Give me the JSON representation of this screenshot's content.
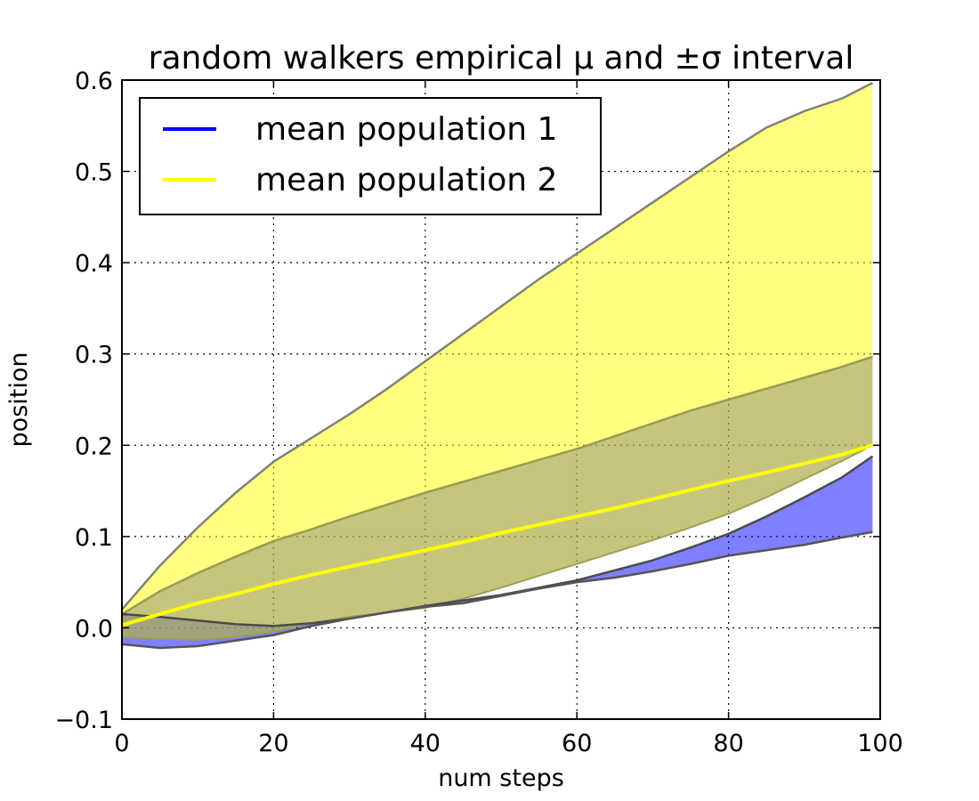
{
  "chart_data": {
    "type": "line",
    "title": "random walkers empirical μ and ±σ interval",
    "xlabel": "num steps",
    "ylabel": "position",
    "xlim": [
      0,
      100
    ],
    "ylim": [
      -0.1,
      0.6
    ],
    "xticks": [
      0,
      20,
      40,
      60,
      80,
      100
    ],
    "xtick_labels": [
      "0",
      "20",
      "40",
      "60",
      "80",
      "100"
    ],
    "yticks": [
      -0.1,
      0.0,
      0.1,
      0.2,
      0.3,
      0.4,
      0.5,
      0.6
    ],
    "ytick_labels": [
      "−0.1",
      "0.0",
      "0.1",
      "0.2",
      "0.3",
      "0.4",
      "0.5",
      "0.6"
    ],
    "grid": true,
    "legend_position": "top-left",
    "series": [
      {
        "name": "mean population 1",
        "color": "#0000ff",
        "fill_color": "#0000ff",
        "x": [
          0,
          5,
          10,
          15,
          20,
          25,
          30,
          35,
          40,
          45,
          50,
          55,
          60,
          65,
          70,
          75,
          80,
          85,
          90,
          95,
          99
        ],
        "upper": [
          0.015,
          0.012,
          0.008,
          0.004,
          0.002,
          0.005,
          0.01,
          0.017,
          0.024,
          0.03,
          0.036,
          0.044,
          0.052,
          0.063,
          0.074,
          0.088,
          0.103,
          0.122,
          0.143,
          0.165,
          0.188
        ],
        "lower": [
          -0.018,
          -0.022,
          -0.02,
          -0.014,
          -0.008,
          0.002,
          0.01,
          0.017,
          0.023,
          0.027,
          0.035,
          0.043,
          0.05,
          0.055,
          0.062,
          0.07,
          0.079,
          0.085,
          0.091,
          0.099,
          0.105
        ]
      },
      {
        "name": "mean population 2",
        "color": "#ffff00",
        "fill_color": "#ffff00",
        "x": [
          0,
          5,
          10,
          15,
          20,
          25,
          30,
          35,
          40,
          45,
          50,
          55,
          60,
          65,
          70,
          75,
          80,
          85,
          90,
          95,
          99
        ],
        "mean": [
          0.003,
          0.015,
          0.027,
          0.037,
          0.048,
          0.058,
          0.067,
          0.076,
          0.085,
          0.094,
          0.104,
          0.113,
          0.122,
          0.131,
          0.141,
          0.151,
          0.161,
          0.17,
          0.18,
          0.19,
          0.2
        ],
        "upper": [
          0.02,
          0.068,
          0.11,
          0.148,
          0.182,
          0.208,
          0.234,
          0.262,
          0.292,
          0.322,
          0.352,
          0.382,
          0.41,
          0.438,
          0.466,
          0.494,
          0.522,
          0.548,
          0.566,
          0.58,
          0.597
        ],
        "lower": [
          -0.01,
          -0.012,
          -0.013,
          -0.01,
          -0.004,
          0.005,
          0.012,
          0.017,
          0.022,
          0.032,
          0.044,
          0.057,
          0.07,
          0.083,
          0.096,
          0.11,
          0.125,
          0.143,
          0.163,
          0.183,
          0.2
        ],
        "band_upper": [
          0.015,
          0.04,
          0.06,
          0.078,
          0.095,
          0.108,
          0.122,
          0.135,
          0.148,
          0.16,
          0.172,
          0.184,
          0.196,
          0.21,
          0.224,
          0.238,
          0.25,
          0.262,
          0.274,
          0.286,
          0.297
        ]
      }
    ]
  }
}
